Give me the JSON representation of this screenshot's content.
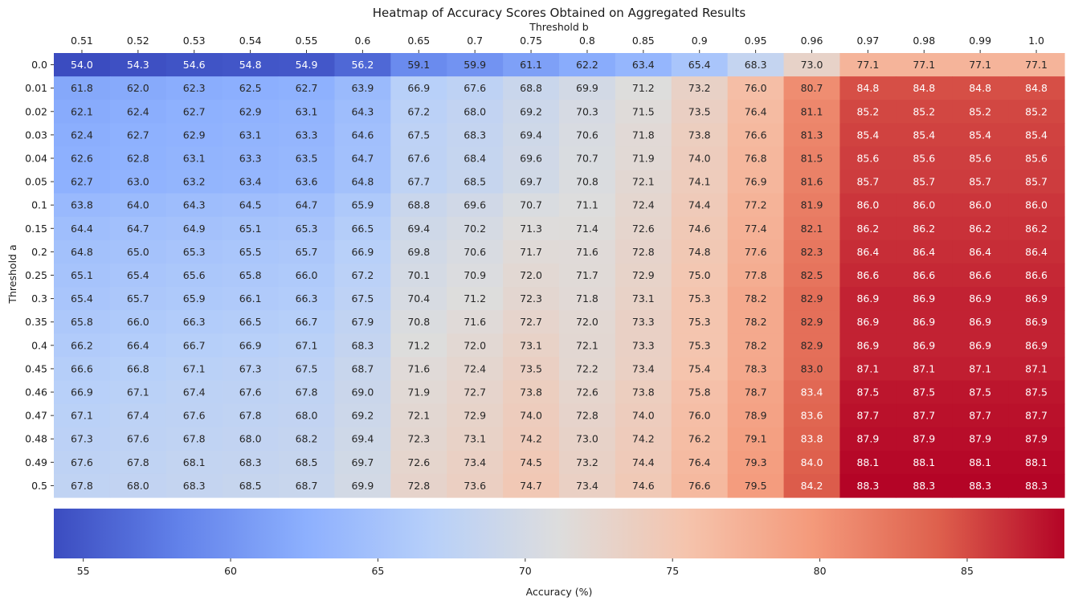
{
  "chart_data": {
    "type": "heatmap",
    "title": "Heatmap of Accuracy Scores Obtained on Aggregated Results",
    "xlabel": "Threshold b",
    "ylabel": "Threshold a",
    "x_categories": [
      "0.51",
      "0.52",
      "0.53",
      "0.54",
      "0.55",
      "0.6",
      "0.65",
      "0.7",
      "0.75",
      "0.8",
      "0.85",
      "0.9",
      "0.95",
      "0.96",
      "0.97",
      "0.98",
      "0.99",
      "1.0"
    ],
    "y_categories": [
      "0.0",
      "0.01",
      "0.02",
      "0.03",
      "0.04",
      "0.05",
      "0.1",
      "0.15",
      "0.2",
      "0.25",
      "0.3",
      "0.35",
      "0.4",
      "0.45",
      "0.46",
      "0.47",
      "0.48",
      "0.49",
      "0.5"
    ],
    "values": [
      [
        54.0,
        54.3,
        54.6,
        54.8,
        54.9,
        56.2,
        59.1,
        59.9,
        61.1,
        62.2,
        63.4,
        65.4,
        68.3,
        73.0,
        77.1,
        77.1,
        77.1,
        77.1
      ],
      [
        61.8,
        62.0,
        62.3,
        62.5,
        62.7,
        63.9,
        66.9,
        67.6,
        68.8,
        69.9,
        71.2,
        73.2,
        76.0,
        80.7,
        84.8,
        84.8,
        84.8,
        84.8
      ],
      [
        62.1,
        62.4,
        62.7,
        62.9,
        63.1,
        64.3,
        67.2,
        68.0,
        69.2,
        70.3,
        71.5,
        73.5,
        76.4,
        81.1,
        85.2,
        85.2,
        85.2,
        85.2
      ],
      [
        62.4,
        62.7,
        62.9,
        63.1,
        63.3,
        64.6,
        67.5,
        68.3,
        69.4,
        70.6,
        71.8,
        73.8,
        76.6,
        81.3,
        85.4,
        85.4,
        85.4,
        85.4
      ],
      [
        62.6,
        62.8,
        63.1,
        63.3,
        63.5,
        64.7,
        67.6,
        68.4,
        69.6,
        70.7,
        71.9,
        74.0,
        76.8,
        81.5,
        85.6,
        85.6,
        85.6,
        85.6
      ],
      [
        62.7,
        63.0,
        63.2,
        63.4,
        63.6,
        64.8,
        67.7,
        68.5,
        69.7,
        70.8,
        72.1,
        74.1,
        76.9,
        81.6,
        85.7,
        85.7,
        85.7,
        85.7
      ],
      [
        63.8,
        64.0,
        64.3,
        64.5,
        64.7,
        65.9,
        68.8,
        69.6,
        70.7,
        71.1,
        72.4,
        74.4,
        77.2,
        81.9,
        86.0,
        86.0,
        86.0,
        86.0
      ],
      [
        64.4,
        64.7,
        64.9,
        65.1,
        65.3,
        66.5,
        69.4,
        70.2,
        71.3,
        71.4,
        72.6,
        74.6,
        77.4,
        82.1,
        86.2,
        86.2,
        86.2,
        86.2
      ],
      [
        64.8,
        65.0,
        65.3,
        65.5,
        65.7,
        66.9,
        69.8,
        70.6,
        71.7,
        71.6,
        72.8,
        74.8,
        77.6,
        82.3,
        86.4,
        86.4,
        86.4,
        86.4
      ],
      [
        65.1,
        65.4,
        65.6,
        65.8,
        66.0,
        67.2,
        70.1,
        70.9,
        72.0,
        71.7,
        72.9,
        75.0,
        77.8,
        82.5,
        86.6,
        86.6,
        86.6,
        86.6
      ],
      [
        65.4,
        65.7,
        65.9,
        66.1,
        66.3,
        67.5,
        70.4,
        71.2,
        72.3,
        71.8,
        73.1,
        75.3,
        78.2,
        82.9,
        86.9,
        86.9,
        86.9,
        86.9
      ],
      [
        65.8,
        66.0,
        66.3,
        66.5,
        66.7,
        67.9,
        70.8,
        71.6,
        72.7,
        72.0,
        73.3,
        75.3,
        78.2,
        82.9,
        86.9,
        86.9,
        86.9,
        86.9
      ],
      [
        66.2,
        66.4,
        66.7,
        66.9,
        67.1,
        68.3,
        71.2,
        72.0,
        73.1,
        72.1,
        73.3,
        75.3,
        78.2,
        82.9,
        86.9,
        86.9,
        86.9,
        86.9
      ],
      [
        66.6,
        66.8,
        67.1,
        67.3,
        67.5,
        68.7,
        71.6,
        72.4,
        73.5,
        72.2,
        73.4,
        75.4,
        78.3,
        83.0,
        87.1,
        87.1,
        87.1,
        87.1
      ],
      [
        66.9,
        67.1,
        67.4,
        67.6,
        67.8,
        69.0,
        71.9,
        72.7,
        73.8,
        72.6,
        73.8,
        75.8,
        78.7,
        83.4,
        87.5,
        87.5,
        87.5,
        87.5
      ],
      [
        67.1,
        67.4,
        67.6,
        67.8,
        68.0,
        69.2,
        72.1,
        72.9,
        74.0,
        72.8,
        74.0,
        76.0,
        78.9,
        83.6,
        87.7,
        87.7,
        87.7,
        87.7
      ],
      [
        67.3,
        67.6,
        67.8,
        68.0,
        68.2,
        69.4,
        72.3,
        73.1,
        74.2,
        73.0,
        74.2,
        76.2,
        79.1,
        83.8,
        87.9,
        87.9,
        87.9,
        87.9
      ],
      [
        67.6,
        67.8,
        68.1,
        68.3,
        68.5,
        69.7,
        72.6,
        73.4,
        74.5,
        73.2,
        74.4,
        76.4,
        79.3,
        84.0,
        88.1,
        88.1,
        88.1,
        88.1
      ],
      [
        67.8,
        68.0,
        68.3,
        68.5,
        68.7,
        69.9,
        72.8,
        73.6,
        74.7,
        73.4,
        74.6,
        76.6,
        79.5,
        84.2,
        88.3,
        88.3,
        88.3,
        88.3
      ]
    ],
    "colormap": "coolwarm",
    "vmin": 54.0,
    "vmax": 88.3,
    "colorbar": {
      "label": "Accuracy (%)",
      "ticks": [
        55,
        60,
        65,
        70,
        75,
        80,
        85
      ],
      "orientation": "horizontal"
    },
    "annotations": "cell values shown with one decimal"
  }
}
